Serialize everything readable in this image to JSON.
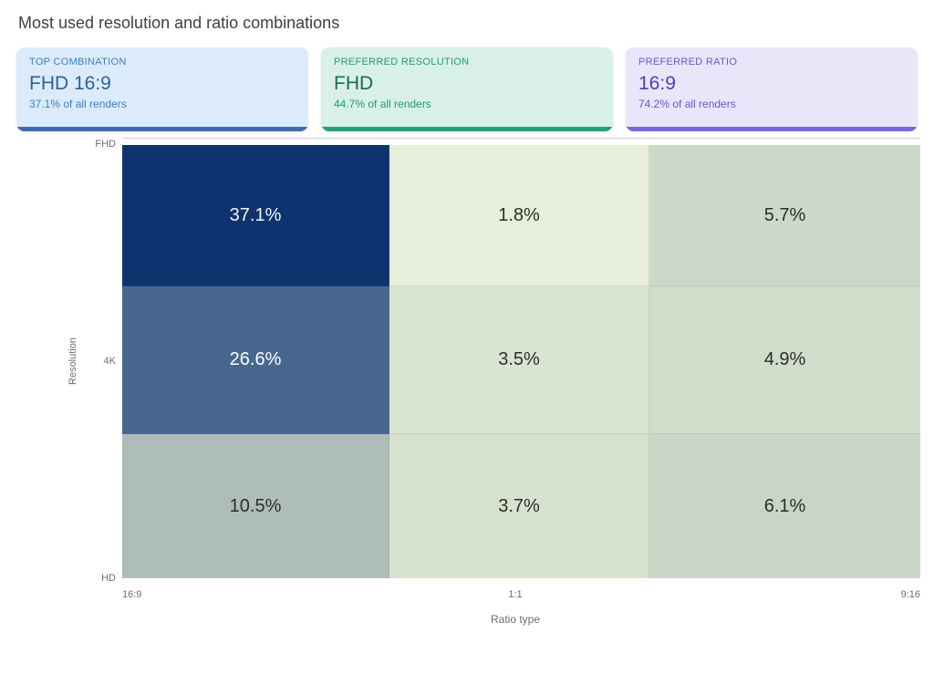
{
  "page": {
    "title": "Most used resolution and ratio combinations"
  },
  "cards": [
    {
      "label": "TOP COMBINATION",
      "value": "FHD 16:9",
      "caption": "37.1% of all renders",
      "bg": "#dcebfb",
      "accent": "#3b7fc4",
      "value_color": "#2d5f9a",
      "bar": "#3f6cae"
    },
    {
      "label": "PREFERRED RESOLUTION",
      "value": "FHD",
      "caption": "44.7% of all renders",
      "bg": "#d9f0e6",
      "accent": "#1f9c73",
      "value_color": "#156c50",
      "bar": "#27a077"
    },
    {
      "label": "PREFERRED RATIO",
      "value": "16:9",
      "caption": "74.2% of all renders",
      "bg": "#e9e6fa",
      "accent": "#6658cc",
      "value_color": "#4e3db8",
      "bar": "#7a68d2"
    }
  ],
  "chart_data": {
    "type": "heatmap",
    "title": "Most used resolution and ratio combinations",
    "xlabel": "Ratio type",
    "ylabel": "Resolution",
    "x_categories": [
      "16:9",
      "1:1",
      "9:16"
    ],
    "y_categories": [
      "FHD",
      "4K",
      "HD"
    ],
    "unit": "%",
    "values": [
      [
        37.1,
        1.8,
        5.7
      ],
      [
        26.6,
        3.5,
        4.9
      ],
      [
        10.5,
        3.7,
        6.1
      ]
    ],
    "cell_colors": [
      [
        "#0e336e",
        "#e7eeda",
        "#cbd9c8"
      ],
      [
        "#48678e",
        "#dae5d1",
        "#d1ddcb"
      ],
      [
        "#aebdb9",
        "#d7e2ce",
        "#c9d6c5"
      ]
    ],
    "cell_text_colors": [
      [
        "#f2f5f8",
        "#2d2d2d",
        "#2d2d2d"
      ],
      [
        "#ffffff",
        "#2d2d2d",
        "#2d2d2d"
      ],
      [
        "#2d2d2d",
        "#2d2d2d",
        "#2d2d2d"
      ]
    ],
    "legend": "none",
    "grid": "off"
  }
}
